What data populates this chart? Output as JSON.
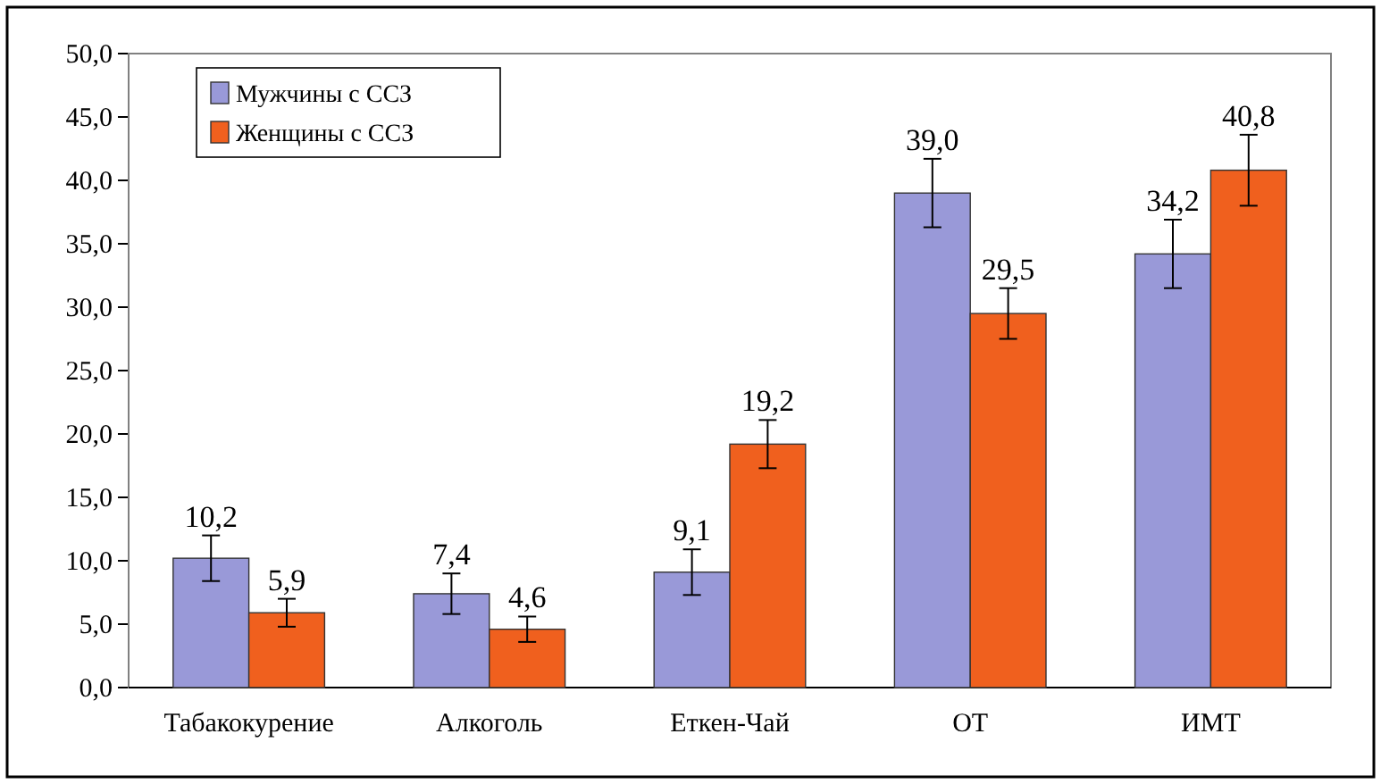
{
  "chart_data": {
    "type": "bar",
    "categories": [
      "Табакокурение",
      "Алкоголь",
      "Еткен-Чай",
      "ОТ",
      "ИМТ"
    ],
    "series": [
      {
        "name": "Мужчины с ССЗ",
        "color": "#9999d8",
        "values": [
          10.2,
          7.4,
          9.1,
          39.0,
          34.2
        ],
        "errors": [
          1.8,
          1.6,
          1.8,
          2.7,
          2.7
        ],
        "value_labels": [
          "10,2",
          "7,4",
          "9,1",
          "39,0",
          "34,2"
        ]
      },
      {
        "name": "Женщины с ССЗ",
        "color": "#f0601e",
        "values": [
          5.9,
          4.6,
          19.2,
          29.5,
          40.8
        ],
        "errors": [
          1.1,
          1.0,
          1.9,
          2.0,
          2.8
        ],
        "value_labels": [
          "5,9",
          "4,6",
          "19,2",
          "29,5",
          "40,8"
        ]
      }
    ],
    "ylim": [
      0,
      50
    ],
    "yticks": [
      {
        "value": 0,
        "label": "0,0"
      },
      {
        "value": 5,
        "label": "5,0"
      },
      {
        "value": 10,
        "label": "10,0"
      },
      {
        "value": 15,
        "label": "15,0"
      },
      {
        "value": 20,
        "label": "20,0"
      },
      {
        "value": 25,
        "label": "25,0"
      },
      {
        "value": 30,
        "label": "30,0"
      },
      {
        "value": 35,
        "label": "35,0"
      },
      {
        "value": 40,
        "label": "40,0"
      },
      {
        "value": 45,
        "label": "45,0"
      },
      {
        "value": 50,
        "label": "50,0"
      }
    ],
    "legend": "top left",
    "grid": false
  }
}
